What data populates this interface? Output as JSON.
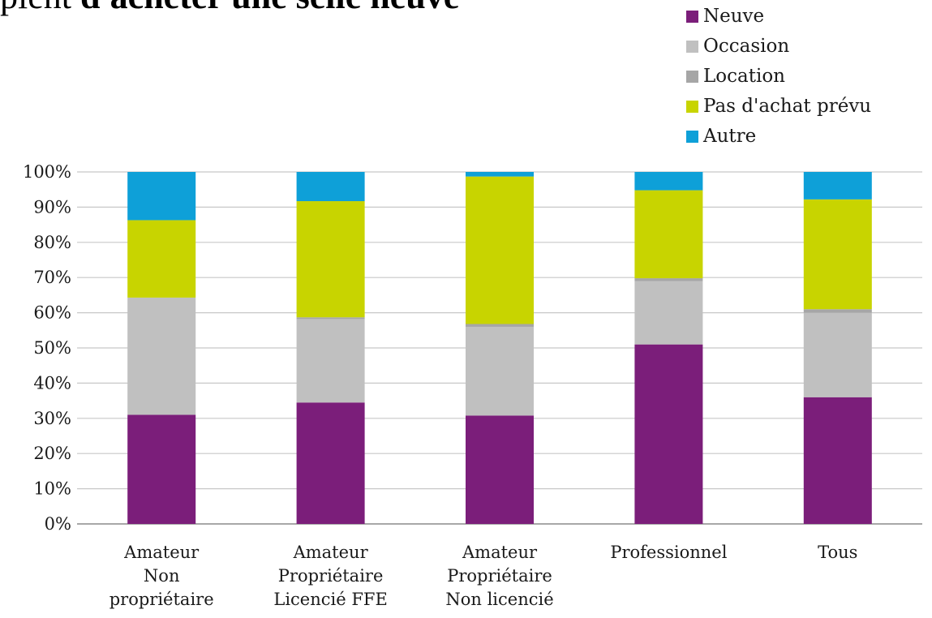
{
  "title": {
    "prefix": "pient ",
    "bold": "d'acheter une selle neuve"
  },
  "chart_data": {
    "type": "bar",
    "stacked": true,
    "title": "",
    "xlabel": "",
    "ylabel": "",
    "ylim": [
      0,
      100
    ],
    "yticks": [
      "0%",
      "10%",
      "20%",
      "30%",
      "40%",
      "50%",
      "60%",
      "70%",
      "80%",
      "90%",
      "100%"
    ],
    "grid": true,
    "legend_position": "top-right",
    "categories": [
      [
        "Amateur",
        "Non",
        "propriétaire"
      ],
      [
        "Amateur",
        "Propriétaire",
        "Licencié FFE"
      ],
      [
        "Amateur",
        "Propriétaire",
        "Non licencié"
      ],
      [
        "Professionnel"
      ],
      [
        "Tous"
      ]
    ],
    "series": [
      {
        "name": "Neuve",
        "color": "#7b1e7a",
        "values": [
          31,
          34.5,
          30.8,
          51,
          36
        ]
      },
      {
        "name": "Occasion",
        "color": "#c0c0c0",
        "values": [
          33.3,
          23.7,
          25.2,
          18,
          24
        ]
      },
      {
        "name": "Location",
        "color": "#a6a6a6",
        "values": [
          0,
          0.5,
          0.8,
          0.8,
          1
        ]
      },
      {
        "name": "Pas d'achat prévu",
        "color": "#c8d400",
        "values": [
          22,
          33,
          41.9,
          25,
          31.2
        ]
      },
      {
        "name": "Autre",
        "color": "#0ea0d8",
        "values": [
          13.7,
          8.3,
          1.3,
          5.2,
          7.8
        ]
      }
    ]
  }
}
